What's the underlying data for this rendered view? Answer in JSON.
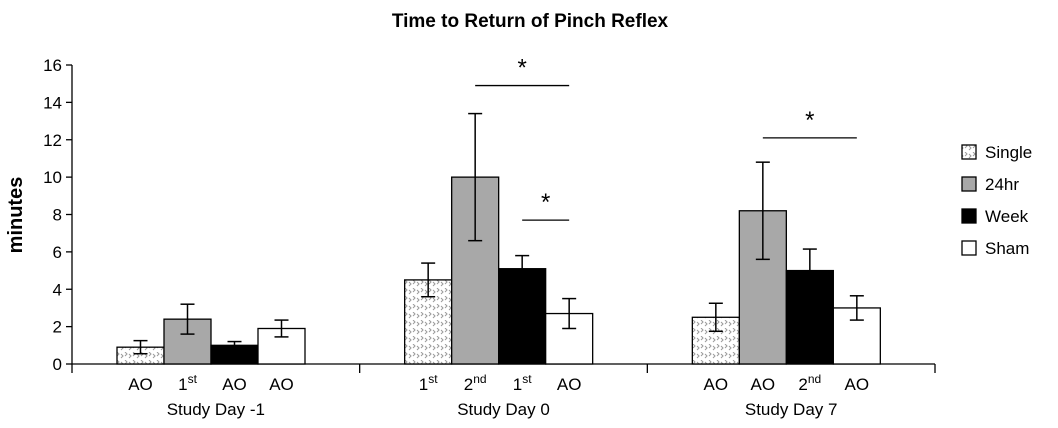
{
  "chart_data": {
    "type": "bar",
    "title": "Time to Return of Pinch Reflex",
    "ylabel": "minutes",
    "xlabel": "",
    "ylim": [
      0,
      16
    ],
    "yticks": [
      0,
      2,
      4,
      6,
      8,
      10,
      12,
      14,
      16
    ],
    "grid": false,
    "legend_position": "right",
    "groups": [
      {
        "name": "Study Day -1",
        "bar_labels": [
          {
            "text": "AO",
            "sup": ""
          },
          {
            "text": "1",
            "sup": "st"
          },
          {
            "text": "AO",
            "sup": ""
          },
          {
            "text": "AO",
            "sup": ""
          }
        ]
      },
      {
        "name": "Study Day 0",
        "bar_labels": [
          {
            "text": "1",
            "sup": "st"
          },
          {
            "text": "2",
            "sup": "nd"
          },
          {
            "text": "1",
            "sup": "st"
          },
          {
            "text": "AO",
            "sup": ""
          }
        ]
      },
      {
        "name": "Study Day 7",
        "bar_labels": [
          {
            "text": "AO",
            "sup": ""
          },
          {
            "text": "AO",
            "sup": ""
          },
          {
            "text": "2",
            "sup": "nd"
          },
          {
            "text": "AO",
            "sup": ""
          }
        ]
      }
    ],
    "series": [
      {
        "name": "Single",
        "fill": "pattern",
        "color": "#ffffff",
        "values": [
          0.9,
          4.5,
          2.5
        ],
        "errors": [
          0.35,
          0.9,
          0.75
        ]
      },
      {
        "name": "24hr",
        "fill": "solid",
        "color": "#a8a8a8",
        "values": [
          2.4,
          10.0,
          8.2
        ],
        "errors": [
          0.8,
          3.4,
          2.6
        ]
      },
      {
        "name": "Week",
        "fill": "solid",
        "color": "#000000",
        "values": [
          1.0,
          5.1,
          5.0
        ],
        "errors": [
          0.2,
          0.7,
          1.15
        ]
      },
      {
        "name": "Sham",
        "fill": "solid",
        "color": "#ffffff",
        "values": [
          1.9,
          2.7,
          3.0
        ],
        "errors": [
          0.45,
          0.8,
          0.65
        ]
      }
    ],
    "significance": [
      {
        "label": "*",
        "group": 1,
        "from_series": 1,
        "to_series": 3,
        "y": 14.9
      },
      {
        "label": "*",
        "group": 1,
        "from_series": 2,
        "to_series": 3,
        "y": 7.7
      },
      {
        "label": "*",
        "group": 2,
        "from_series": 1,
        "to_series": 3,
        "y": 12.1
      }
    ]
  }
}
